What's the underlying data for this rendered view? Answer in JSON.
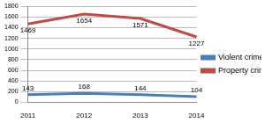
{
  "chart_data": {
    "type": "line",
    "categories": [
      "2011",
      "2012",
      "2013",
      "2014"
    ],
    "series": [
      {
        "name": "Violent crime",
        "color": "#4a7ebb",
        "values": [
          143,
          168,
          144,
          104
        ]
      },
      {
        "name": "Property crime",
        "color": "#be4b48",
        "values": [
          1469,
          1654,
          1571,
          1227
        ]
      }
    ],
    "ylim": [
      0,
      1800
    ],
    "yticks": [
      0,
      200,
      400,
      600,
      800,
      1000,
      1200,
      1400,
      1600,
      1800
    ],
    "grid": true,
    "legend": "right",
    "data_labels": true
  }
}
